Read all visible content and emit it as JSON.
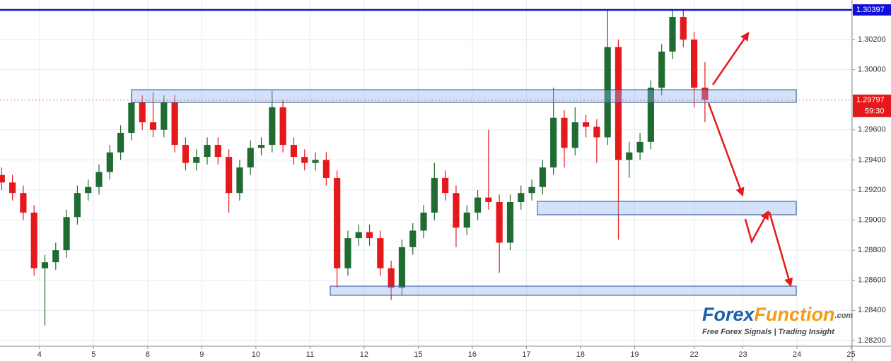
{
  "chart_data": {
    "type": "candlestick",
    "x": [
      -0.7,
      -0.5,
      -0.3,
      -0.1,
      0.1,
      0.3,
      0.5,
      0.7,
      0.9,
      1.1,
      1.3,
      1.5,
      1.7,
      1.9,
      2.1,
      2.3,
      2.5,
      2.7,
      2.9,
      3.1,
      3.3,
      3.5,
      3.7,
      3.9,
      4.1,
      4.3,
      4.5,
      4.7,
      4.9,
      5.1,
      5.3,
      5.5,
      5.7,
      5.9,
      6.1,
      6.3,
      6.5,
      6.7,
      6.9,
      7.1,
      7.3,
      7.5,
      7.7,
      7.9,
      8.1,
      8.3,
      8.5,
      8.7,
      8.9,
      9.1,
      9.3,
      9.5,
      9.7,
      9.9,
      10.1,
      10.3,
      10.5,
      10.7,
      10.9,
      11.1,
      11.3,
      11.5,
      11.7,
      11.9,
      12.1,
      12.3
    ],
    "open": [
      1.293,
      1.2925,
      1.2918,
      1.2905,
      1.2868,
      1.2872,
      1.288,
      1.2902,
      1.2918,
      1.2922,
      1.2932,
      1.2945,
      1.2958,
      1.2978,
      1.2965,
      1.296,
      1.2978,
      1.295,
      1.2938,
      1.2942,
      1.295,
      1.2942,
      1.2918,
      1.2935,
      1.2948,
      1.295,
      1.2975,
      1.295,
      1.2942,
      1.2938,
      1.294,
      1.2928,
      1.2868,
      1.2888,
      1.2892,
      1.2888,
      1.2868,
      1.2855,
      1.2882,
      1.2893,
      1.2905,
      1.2928,
      1.2918,
      1.2895,
      1.2905,
      1.2915,
      1.2912,
      1.2885,
      1.2912,
      1.2918,
      1.2922,
      1.2935,
      1.2968,
      1.2948,
      1.2965,
      1.2962,
      1.2955,
      1.3015,
      1.294,
      1.2945,
      1.2952,
      1.2988,
      1.3012,
      1.3035,
      1.302,
      1.2988
    ],
    "high": [
      1.2935,
      1.293,
      1.2923,
      1.291,
      1.2877,
      1.2885,
      1.2907,
      1.2923,
      1.2927,
      1.2937,
      1.295,
      1.2963,
      1.2985,
      1.2983,
      1.2985,
      1.2983,
      1.2983,
      1.2955,
      1.2947,
      1.2955,
      1.2955,
      1.2947,
      1.294,
      1.2953,
      1.2955,
      1.2986,
      1.298,
      1.2955,
      1.2947,
      1.2945,
      1.2945,
      1.2933,
      1.2893,
      1.2897,
      1.2897,
      1.2893,
      1.2873,
      1.2887,
      1.2898,
      1.291,
      1.2938,
      1.2933,
      1.2923,
      1.291,
      1.292,
      1.296,
      1.2917,
      1.2917,
      1.2923,
      1.2927,
      1.294,
      1.2988,
      1.2973,
      1.2975,
      1.297,
      1.2967,
      1.304,
      1.302,
      1.2952,
      1.2958,
      1.2993,
      1.3017,
      1.304,
      1.304,
      1.3025,
      1.3005
    ],
    "low": [
      1.292,
      1.2913,
      1.29,
      1.2863,
      1.283,
      1.2867,
      1.2875,
      1.2897,
      1.2913,
      1.2917,
      1.2927,
      1.294,
      1.2953,
      1.296,
      1.2955,
      1.2955,
      1.2945,
      1.2933,
      1.2933,
      1.2937,
      1.2937,
      1.2905,
      1.2913,
      1.293,
      1.2943,
      1.2945,
      1.2945,
      1.2937,
      1.2933,
      1.2933,
      1.2923,
      1.2855,
      1.2863,
      1.2883,
      1.2883,
      1.2863,
      1.2847,
      1.285,
      1.2877,
      1.2888,
      1.29,
      1.2913,
      1.2882,
      1.289,
      1.29,
      1.2907,
      1.2865,
      1.288,
      1.2907,
      1.2913,
      1.2917,
      1.293,
      1.2935,
      1.2943,
      1.2955,
      1.2938,
      1.295,
      1.2887,
      1.2928,
      1.294,
      1.2947,
      1.2983,
      1.3007,
      1.3015,
      1.2975,
      1.2965
    ],
    "close": [
      1.2925,
      1.2918,
      1.2905,
      1.2868,
      1.2872,
      1.288,
      1.2902,
      1.2918,
      1.2922,
      1.2932,
      1.2945,
      1.2958,
      1.2978,
      1.2965,
      1.296,
      1.2978,
      1.295,
      1.2938,
      1.2942,
      1.295,
      1.2942,
      1.2918,
      1.2935,
      1.2948,
      1.295,
      1.2975,
      1.295,
      1.2942,
      1.2938,
      1.294,
      1.2928,
      1.2868,
      1.2888,
      1.2892,
      1.2888,
      1.2868,
      1.2855,
      1.2882,
      1.2893,
      1.2905,
      1.2928,
      1.2918,
      1.2895,
      1.2905,
      1.2915,
      1.2912,
      1.2885,
      1.2912,
      1.2918,
      1.2922,
      1.2935,
      1.2968,
      1.2948,
      1.2965,
      1.2962,
      1.2955,
      1.3015,
      1.294,
      1.2945,
      1.2952,
      1.2988,
      1.3012,
      1.3035,
      1.302,
      1.2988,
      1.298
    ],
    "up_color": "#1f6b32",
    "down_color": "#e5191c",
    "xlim": [
      -0.73,
      15.02
    ],
    "xticks": [
      {
        "value": 0,
        "label": "4"
      },
      {
        "value": 1,
        "label": "5"
      },
      {
        "value": 2,
        "label": "8"
      },
      {
        "value": 3,
        "label": "9"
      },
      {
        "value": 4,
        "label": "10"
      },
      {
        "value": 5,
        "label": "11"
      },
      {
        "value": 6,
        "label": "12"
      },
      {
        "value": 7,
        "label": "15"
      },
      {
        "value": 8,
        "label": "16"
      },
      {
        "value": 9,
        "label": "17"
      },
      {
        "value": 10,
        "label": "18"
      },
      {
        "value": 11,
        "label": "19"
      },
      {
        "value": 12.1,
        "label": "22"
      },
      {
        "value": 13,
        "label": "23"
      },
      {
        "value": 14,
        "label": "24"
      },
      {
        "value": 15,
        "label": "25"
      }
    ],
    "ylim": [
      1.28162,
      1.30463
    ],
    "yticks": [
      {
        "value": 1.282,
        "label": "1.28200"
      },
      {
        "value": 1.284,
        "label": "1.28400"
      },
      {
        "value": 1.286,
        "label": "1.28600"
      },
      {
        "value": 1.288,
        "label": "1.28800"
      },
      {
        "value": 1.29,
        "label": "1.29000"
      },
      {
        "value": 1.292,
        "label": "1.29200"
      },
      {
        "value": 1.294,
        "label": "1.29400"
      },
      {
        "value": 1.296,
        "label": "1.29600"
      },
      {
        "value": 1.3,
        "label": "1.30000"
      },
      {
        "value": 1.302,
        "label": "1.30200"
      }
    ],
    "grid": true,
    "level_line": {
      "value": 1.30397,
      "label": "1.30397",
      "color": "#1010d8"
    },
    "last_price": {
      "value": 1.29797,
      "label": "1.29797",
      "color": "#e5191c"
    },
    "countdown": "59:30",
    "watermark": {
      "brand_1": "Forex",
      "brand_2": "Function",
      "brand_3": ".com",
      "tagline": "Free Forex Signals | Trading Insight"
    }
  }
}
